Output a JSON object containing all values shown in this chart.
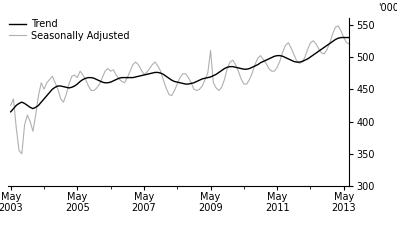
{
  "ylabel_right": "'000",
  "ylim": [
    300,
    560
  ],
  "yticks": [
    300,
    350,
    400,
    450,
    500,
    550
  ],
  "trend_color": "#000000",
  "seasonal_color": "#b0b0b0",
  "legend_entries": [
    "Trend",
    "Seasonally Adjusted"
  ],
  "background_color": "#ffffff",
  "trend_linewidth": 1.0,
  "seasonal_linewidth": 0.8,
  "trend_data": [
    415,
    420,
    425,
    428,
    430,
    428,
    425,
    422,
    420,
    422,
    425,
    430,
    435,
    440,
    445,
    450,
    453,
    455,
    455,
    454,
    453,
    452,
    453,
    455,
    458,
    462,
    465,
    467,
    468,
    468,
    467,
    465,
    463,
    461,
    460,
    460,
    461,
    463,
    465,
    467,
    468,
    468,
    468,
    468,
    468,
    469,
    470,
    471,
    472,
    473,
    474,
    475,
    476,
    476,
    475,
    473,
    470,
    467,
    464,
    462,
    461,
    460,
    459,
    458,
    458,
    459,
    460,
    462,
    464,
    466,
    467,
    468,
    469,
    471,
    473,
    476,
    479,
    482,
    484,
    485,
    485,
    484,
    483,
    482,
    481,
    481,
    482,
    484,
    486,
    488,
    491,
    493,
    495,
    497,
    499,
    501,
    502,
    502,
    501,
    499,
    497,
    495,
    493,
    492,
    492,
    493,
    495,
    497,
    500,
    503,
    506,
    509,
    512,
    515,
    518,
    521,
    524,
    527,
    529,
    530,
    530,
    530,
    530,
    530
  ],
  "seasonal_data": [
    425,
    435,
    390,
    355,
    350,
    395,
    410,
    400,
    385,
    410,
    440,
    460,
    450,
    460,
    465,
    470,
    460,
    450,
    435,
    430,
    442,
    458,
    470,
    472,
    468,
    478,
    472,
    465,
    455,
    448,
    448,
    452,
    458,
    468,
    478,
    482,
    478,
    480,
    472,
    466,
    462,
    460,
    468,
    478,
    488,
    492,
    488,
    480,
    473,
    476,
    482,
    488,
    492,
    486,
    478,
    464,
    452,
    442,
    440,
    448,
    458,
    468,
    474,
    474,
    468,
    460,
    450,
    448,
    450,
    455,
    465,
    475,
    510,
    460,
    452,
    448,
    453,
    465,
    482,
    492,
    495,
    488,
    478,
    466,
    458,
    458,
    465,
    475,
    488,
    498,
    502,
    496,
    490,
    482,
    478,
    478,
    484,
    494,
    508,
    518,
    522,
    514,
    504,
    494,
    490,
    492,
    500,
    512,
    522,
    525,
    520,
    512,
    506,
    505,
    512,
    522,
    536,
    546,
    548,
    540,
    530,
    522,
    520,
    528
  ]
}
